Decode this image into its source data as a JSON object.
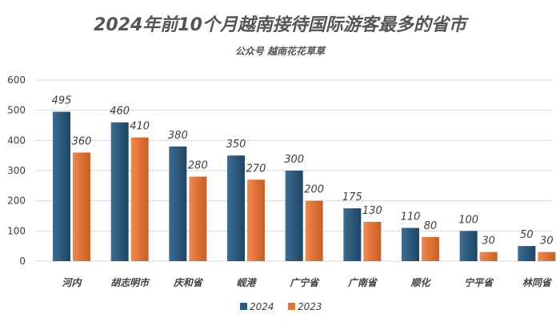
{
  "chart_data": {
    "type": "bar",
    "title": "2024年前10个月越南接待国际游客最多的省市",
    "subtitle": "公众号 越南花花草草",
    "categories": [
      "河内",
      "胡志明市",
      "庆和省",
      "岘港",
      "广宁省",
      "广南省",
      "顺化",
      "宁平省",
      "林同省"
    ],
    "series": [
      {
        "name": "2024",
        "values": [
          495,
          460,
          380,
          350,
          300,
          175,
          110,
          100,
          50
        ],
        "color": "#2e5a7d"
      },
      {
        "name": "2023",
        "values": [
          360,
          410,
          280,
          270,
          200,
          130,
          80,
          30,
          30
        ],
        "color": "#e0733a"
      }
    ],
    "ylim": [
      0,
      600
    ],
    "yticks": [
      0,
      100,
      200,
      300,
      400,
      500,
      600
    ],
    "grid": true,
    "legend_position": "bottom"
  }
}
